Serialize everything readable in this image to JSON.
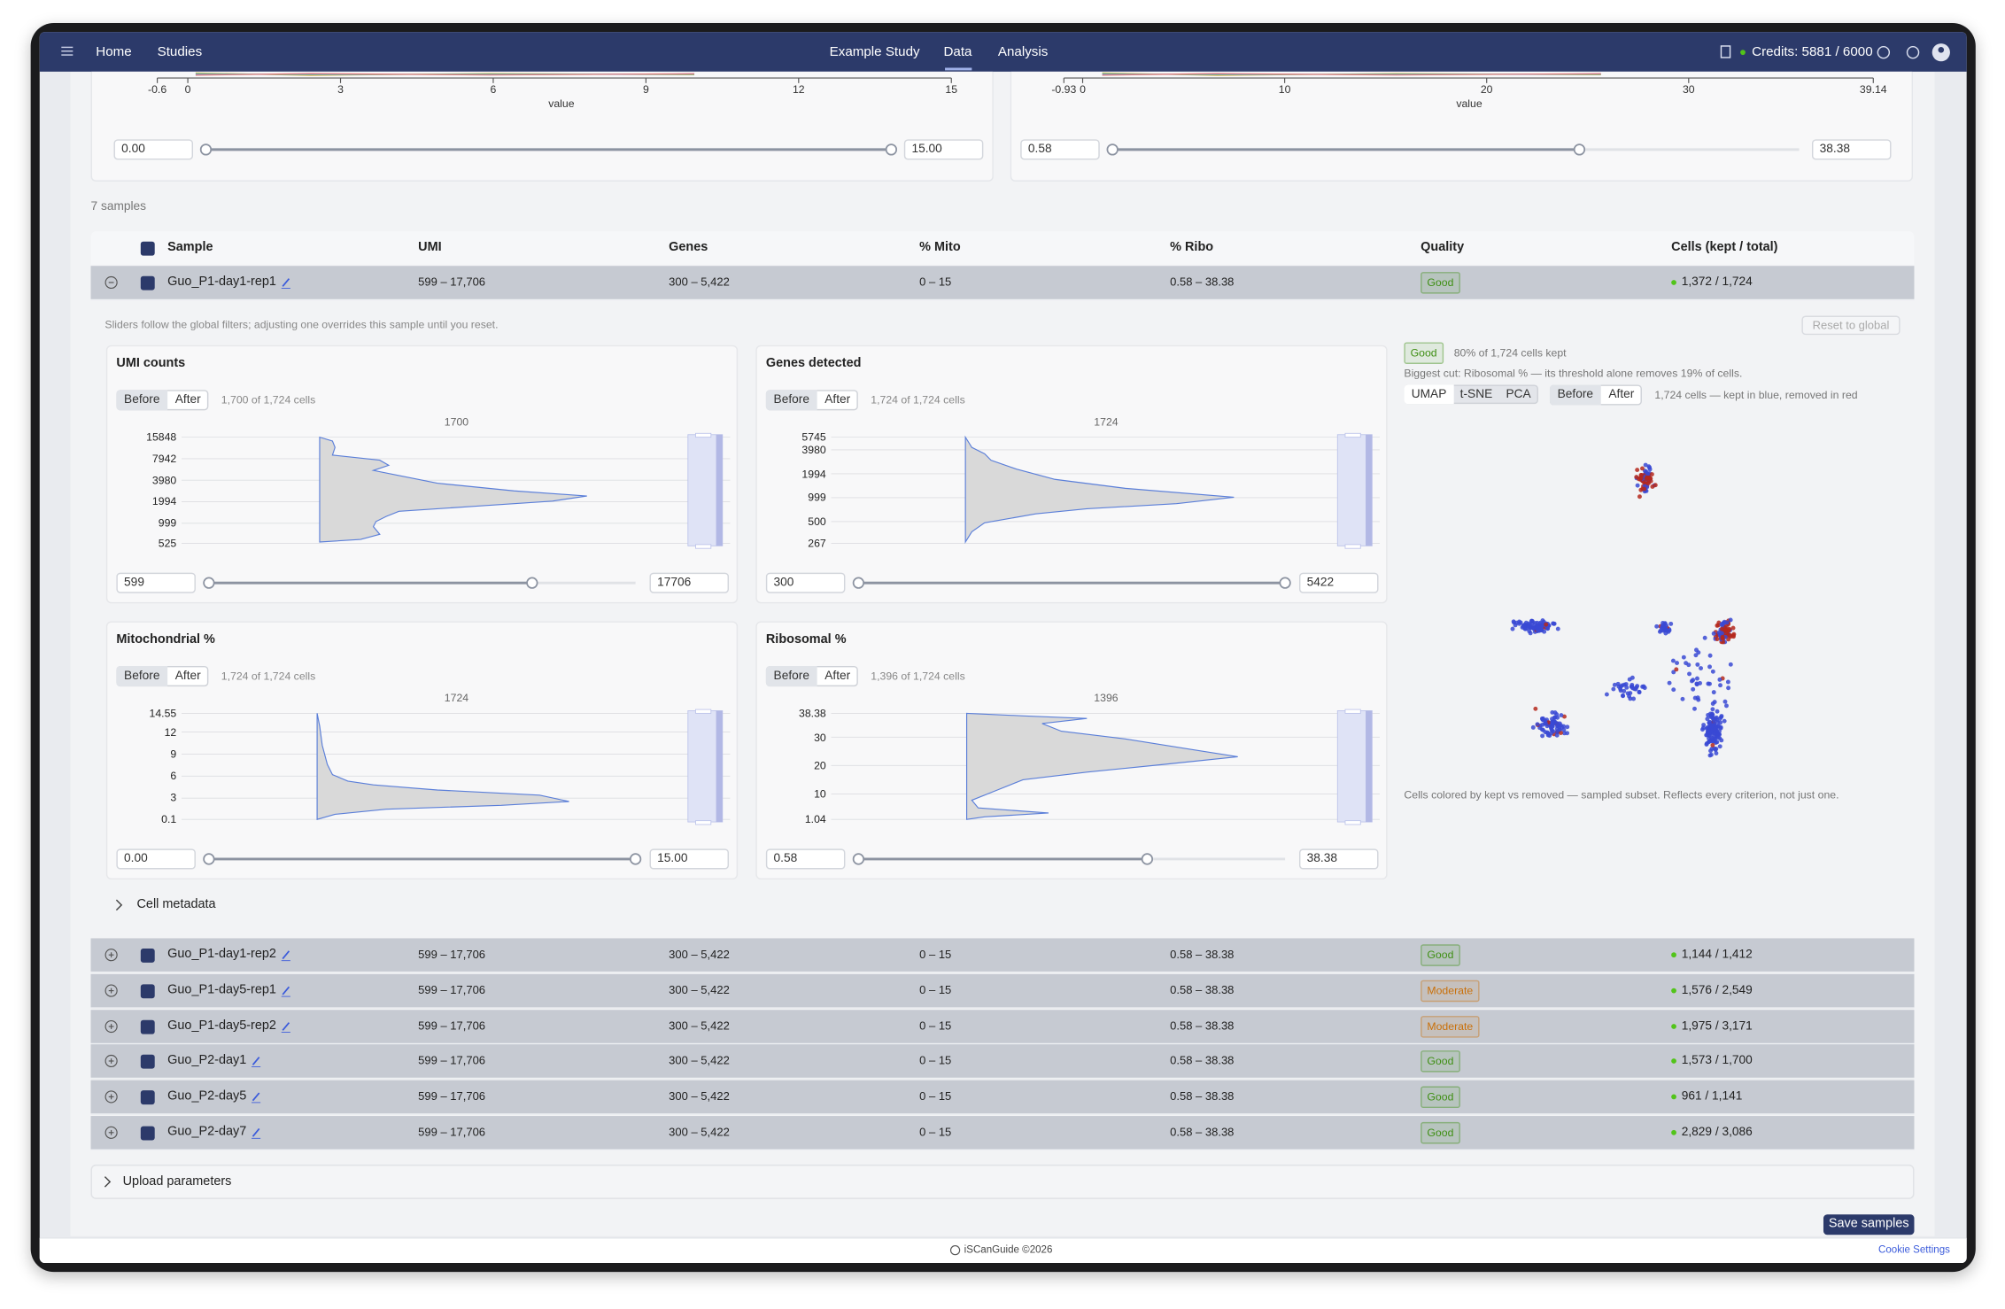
{
  "nav": {
    "links": [
      "Home",
      "Studies"
    ],
    "tabs": [
      "Example Study",
      "Data",
      "Analysis"
    ],
    "credits": "Credits: 5881 / 6000"
  },
  "global_filters": [
    {
      "xlim": [
        -0.6,
        15
      ],
      "xticks": [
        -0.6,
        0,
        3,
        6,
        9,
        12,
        15
      ],
      "xlabel": "value",
      "min": "0.00",
      "max": "15.00"
    },
    {
      "xlim": [
        -0.93,
        39.14
      ],
      "xticks": [
        -0.93,
        0,
        10,
        20,
        30,
        39.14
      ],
      "xlabel": "value",
      "min": "0.58",
      "max": "38.38"
    }
  ],
  "sample_count": "7 samples",
  "badge_colors": {
    "Good": "#3f8f14",
    "Moderate": "#c9700a"
  },
  "table": {
    "headers": [
      "Sample",
      "UMI",
      "Genes",
      "% Mito",
      "% Ribo",
      "Quality",
      "Cells (kept / total)"
    ],
    "rows": [
      [
        "Guo_P1-day1-rep1",
        "599 – 17,706",
        "300 – 5,422",
        "0 – 15",
        "0.58 – 38.38",
        "Good",
        "1,372 / 1,724"
      ],
      [
        "Guo_P1-day1-rep2",
        "599 – 17,706",
        "300 – 5,422",
        "0 – 15",
        "0.58 – 38.38",
        "Good",
        "1,144 / 1,412"
      ],
      [
        "Guo_P1-day5-rep1",
        "599 – 17,706",
        "300 – 5,422",
        "0 – 15",
        "0.58 – 38.38",
        "Moderate",
        "1,576 / 2,549"
      ],
      [
        "Guo_P1-day5-rep2",
        "599 – 17,706",
        "300 – 5,422",
        "0 – 15",
        "0.58 – 38.38",
        "Moderate",
        "1,975 / 3,171"
      ],
      [
        "Guo_P2-day1",
        "599 – 17,706",
        "300 – 5,422",
        "0 – 15",
        "0.58 – 38.38",
        "Good",
        "1,573 / 1,700"
      ],
      [
        "Guo_P2-day5",
        "599 – 17,706",
        "300 – 5,422",
        "0 – 15",
        "0.58 – 38.38",
        "Good",
        "961 / 1,141"
      ],
      [
        "Guo_P2-day7",
        "599 – 17,706",
        "300 – 5,422",
        "0 – 15",
        "0.58 – 38.38",
        "Good",
        "2,829 / 3,086"
      ]
    ]
  },
  "detail": {
    "note": "Sliders follow the global filters; adjusting one overrides this sample until you reset.",
    "reset": "Reset to global",
    "toggle": [
      "Before",
      "After"
    ],
    "panels": [
      {
        "title": "UMI counts",
        "count": "1,700 of 1,724 cells",
        "peak": 1700,
        "log": true,
        "ylim": [
          525,
          15848
        ],
        "yticks": [
          15848,
          7942,
          3980,
          1994,
          999,
          525
        ],
        "min": "599",
        "max": "17706"
      },
      {
        "title": "Genes detected",
        "count": "1,724 of 1,724 cells",
        "peak": 1724,
        "log": true,
        "ylim": [
          267,
          5745
        ],
        "yticks": [
          5745,
          3980,
          1994,
          999,
          500,
          267
        ],
        "min": "300",
        "max": "5422"
      },
      {
        "title": "Mitochondrial %",
        "count": "1,724 of 1,724 cells",
        "peak": 1724,
        "log": false,
        "ylim": [
          0.1,
          14.55
        ],
        "yticks": [
          14.55,
          12,
          9,
          6,
          3,
          0.1
        ],
        "min": "0.00",
        "max": "15.00"
      },
      {
        "title": "Ribosomal %",
        "count": "1,396 of 1,724 cells",
        "peak": 1396,
        "log": false,
        "ylim": [
          1.04,
          38.38
        ],
        "yticks": [
          38.38,
          30,
          20,
          10,
          1.04
        ],
        "min": "0.58",
        "max": "38.38"
      }
    ],
    "summary": {
      "badge": "Good",
      "kept": "80% of 1,724 cells kept",
      "cut": "Biggest cut: Ribosomal % — its threshold alone removes 19% of cells.",
      "views": [
        "UMAP",
        "t-SNE",
        "PCA"
      ],
      "legend": "1,724 cells — kept in blue, removed in red",
      "caption": "Cells colored by kept vs removed — sampled subset. Reflects every criterion, not just one."
    },
    "metadata": "Cell metadata"
  },
  "upload": "Upload parameters",
  "save": "Save samples",
  "footer": {
    "brand": "iSCanGuide ©2026",
    "cookie": "Cookie Settings"
  }
}
